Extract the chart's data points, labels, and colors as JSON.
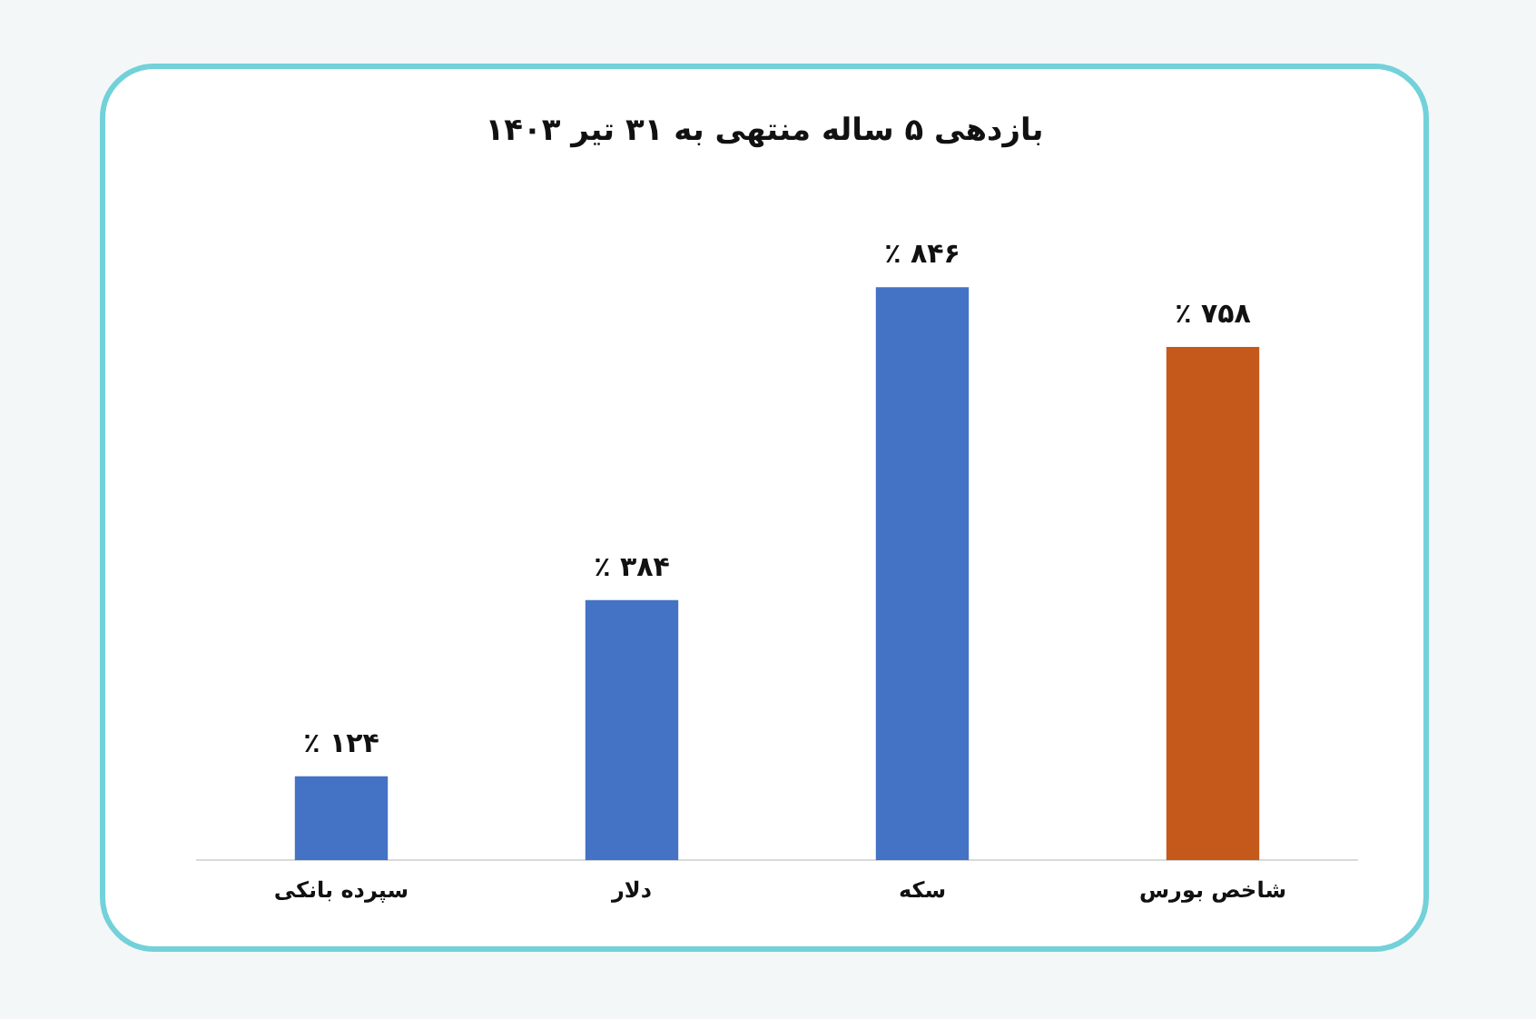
{
  "chart_data": {
    "type": "bar",
    "title": "بازدهی ۵ ساله منتهی به ۳۱ تیر ۱۴۰۳",
    "categories": [
      "سپرده بانکی",
      "دلار",
      "سکه",
      "شاخص بورس"
    ],
    "values": [
      124,
      384,
      846,
      758
    ],
    "colors": [
      "#4472c4",
      "#4472c4",
      "#4472c4",
      "#c5591c"
    ],
    "value_labels": [
      "۱۲۴ ٪",
      "۳۸۴ ٪",
      "۸۴۶ ٪",
      "۷۵۸ ٪"
    ],
    "grid": false,
    "legend": false,
    "tick_labels": "x"
  }
}
